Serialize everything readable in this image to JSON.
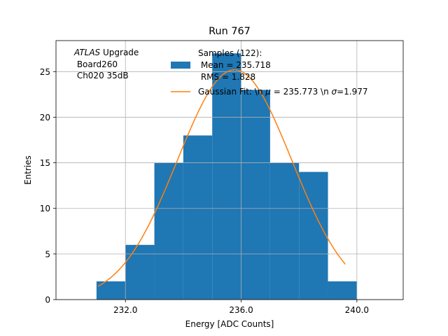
{
  "chart_data": {
    "type": "bar",
    "title": "Run 767",
    "xlabel": "Energy [ADC Counts]",
    "ylabel": "Entries",
    "xlim": [
      229.6,
      241.6
    ],
    "ylim": [
      0,
      28.4
    ],
    "xticks": [
      232,
      236,
      240
    ],
    "xtick_labels": [
      "232.0",
      "236.0",
      "240.0"
    ],
    "yticks": [
      0,
      5,
      10,
      15,
      20,
      25
    ],
    "ytick_labels": [
      "0",
      "5",
      "10",
      "15",
      "20",
      "25"
    ],
    "grid": true,
    "annotation": {
      "italic": "ATLAS",
      "rest": " Upgrade",
      "line2": " Board260",
      "line3": " Ch020 35dB"
    },
    "legend": {
      "placement": "top-center",
      "hist_line1": "Samples (122):",
      "hist_line2": " Mean = 235.718",
      "hist_line3": " RMS = 1.828",
      "fit_label_a": "Gaussian Fit: \\n ",
      "fit_mu": "μ",
      "fit_label_b": " = 235.773 \\n ",
      "fit_sigma": "σ",
      "fit_label_c": "=1.977"
    },
    "histogram": {
      "color": "#1f77b4",
      "bin_edges": [
        231,
        232,
        233,
        234,
        235,
        236,
        237,
        238,
        239,
        240
      ],
      "counts": [
        2,
        6,
        15,
        18,
        27,
        23,
        15,
        14,
        2
      ]
    },
    "fit": {
      "color": "#ff7f0e",
      "amplitude": 25.2,
      "mu": 235.773,
      "sigma": 1.977,
      "x_range": [
        231.05,
        239.6
      ]
    }
  }
}
